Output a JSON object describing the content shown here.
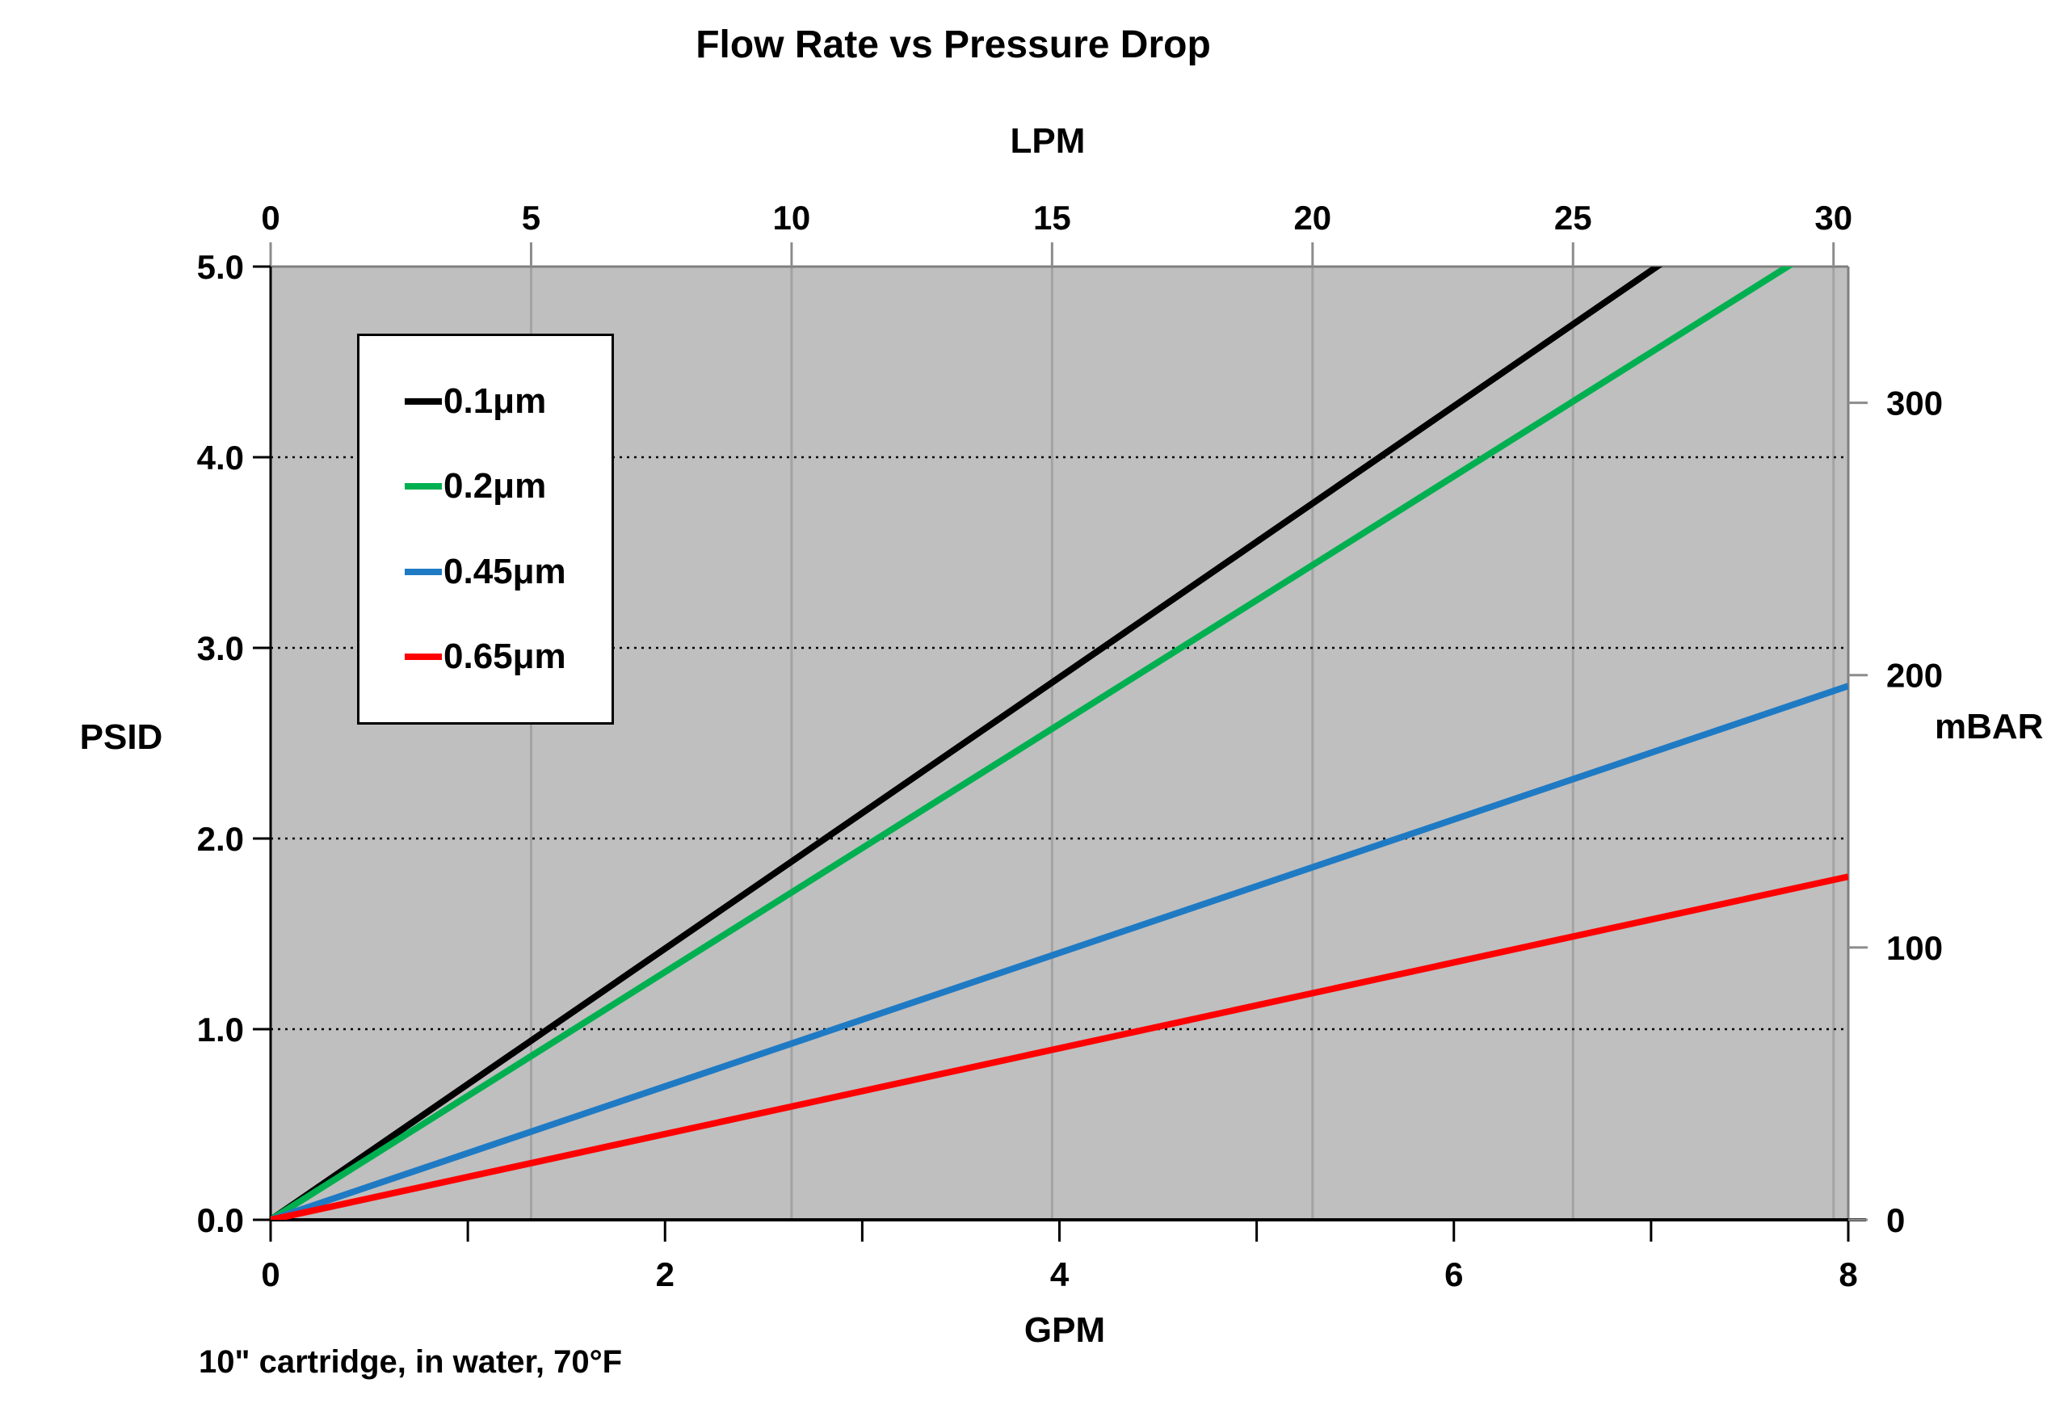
{
  "chart_data": {
    "type": "line",
    "title": "Flow Rate vs Pressure Drop",
    "footnote": "10\" cartridge, in water, 70°F",
    "legend_position": "upper-left-inside",
    "grid_on": true,
    "colors": {
      "plot_bg": "#BFBFBF",
      "vertical_grid": "#A3A3A3",
      "dotted_grid": "#000000",
      "plot_border": "#808080",
      "axis_line": "#000000",
      "outer_tick": "#8C8C8C"
    },
    "axes": {
      "bottom": {
        "label": "GPM",
        "min": 0,
        "max": 8,
        "tick_step": 1,
        "label_every": 2,
        "tick_labels": [
          "0",
          "2",
          "4",
          "6",
          "8"
        ]
      },
      "top": {
        "label": "LPM",
        "min": 0,
        "max": 30,
        "tick_step": 5,
        "tick_labels": [
          "0",
          "5",
          "10",
          "15",
          "20",
          "25",
          "30"
        ],
        "gpm_per_lpm": 0.264172
      },
      "left": {
        "label": "PSID",
        "min": 0,
        "max": 5,
        "tick_step": 1,
        "tick_labels": [
          "0.0",
          "1.0",
          "2.0",
          "3.0",
          "4.0",
          "5.0"
        ]
      },
      "right": {
        "label": "mBAR",
        "min": 0,
        "max": 350,
        "tick_values": [
          0,
          100,
          200,
          300
        ],
        "tick_labels": [
          "0",
          "100",
          "200",
          "300"
        ]
      }
    },
    "grid": {
      "vertical_at_lpm": [
        5,
        10,
        15,
        20,
        25,
        30
      ],
      "horizontal_at_psid": [
        1,
        2,
        3,
        4
      ]
    },
    "series": [
      {
        "name": "0.1μm",
        "color": "#000000",
        "slope_psid_per_gpm": 0.711,
        "points_gpm_psid": [
          [
            0,
            0
          ],
          [
            8,
            5.69
          ]
        ],
        "reaches_5psid_at_gpm": 7.03,
        "reaches_5psid_at_lpm": 26.6
      },
      {
        "name": "0.2μm",
        "color": "#00B050",
        "slope_psid_per_gpm": 0.65,
        "points_gpm_psid": [
          [
            0,
            0
          ],
          [
            8,
            5.2
          ]
        ],
        "reaches_5psid_at_gpm": 7.69,
        "reaches_5psid_at_lpm": 29.1
      },
      {
        "name": "0.45μm",
        "color": "#1F7AC4",
        "slope_psid_per_gpm": 0.35,
        "points_gpm_psid": [
          [
            0,
            0
          ],
          [
            8,
            2.8
          ]
        ]
      },
      {
        "name": "0.65μm",
        "color": "#FF0000",
        "slope_psid_per_gpm": 0.225,
        "points_gpm_psid": [
          [
            0,
            0
          ],
          [
            8,
            1.8
          ]
        ]
      }
    ]
  }
}
